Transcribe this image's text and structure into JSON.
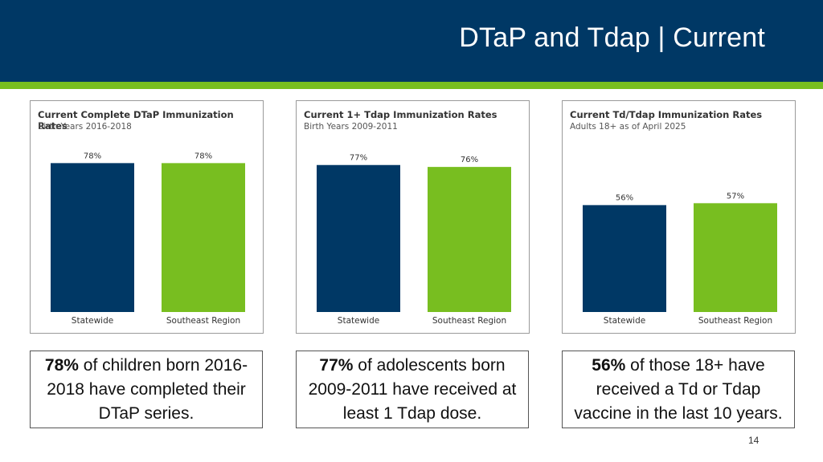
{
  "slide": {
    "title": "DTaP and Tdap | Current",
    "page_number": "14"
  },
  "colors": {
    "header": "#003865",
    "accent": "#78be20",
    "statewide": "#003865",
    "southeast": "#78be20"
  },
  "chart_data": [
    {
      "type": "bar",
      "title": "Current Complete DTaP Immunization Rates",
      "subtitle": "Birth Years 2016-2018",
      "categories": [
        "Statewide",
        "Southeast Region"
      ],
      "values": [
        78,
        78
      ],
      "data_labels": [
        "78%",
        "78%"
      ],
      "ylim": [
        0,
        100
      ],
      "grid": false,
      "legend": "none"
    },
    {
      "type": "bar",
      "title": "Current 1+ Tdap Immunization Rates",
      "subtitle": "Birth Years 2009-2011",
      "categories": [
        "Statewide",
        "Southeast Region"
      ],
      "values": [
        77,
        76
      ],
      "data_labels": [
        "77%",
        "76%"
      ],
      "ylim": [
        0,
        100
      ],
      "grid": false,
      "legend": "none"
    },
    {
      "type": "bar",
      "title": "Current Td/Tdap Immunization Rates",
      "subtitle": "Adults 18+ as of April 2025",
      "categories": [
        "Statewide",
        "Southeast Region"
      ],
      "values": [
        56,
        57
      ],
      "data_labels": [
        "56%",
        "57%"
      ],
      "ylim": [
        0,
        100
      ],
      "grid": false,
      "legend": "none"
    }
  ],
  "notes": [
    {
      "highlight": "78%",
      "text": " of children born 2016-2018 have completed their DTaP series."
    },
    {
      "highlight": "77%",
      "text": " of adolescents born 2009-2011 have received at least 1 Tdap dose."
    },
    {
      "highlight": "56%",
      "text": " of those 18+ have received a Td or Tdap vaccine in the last 10 years."
    }
  ]
}
